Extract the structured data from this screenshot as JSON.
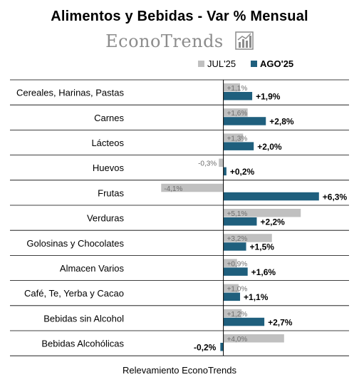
{
  "header": {
    "title": "Alimentos y Bebidas - Var % Mensual",
    "brand": "EconoTrends"
  },
  "footer": {
    "source": "Relevamiento EconoTrends"
  },
  "colors": {
    "jul": "#c0c0c0",
    "ago": "#1f5f7d",
    "grid": "#000000",
    "brand": "#8c8c8c"
  },
  "chart_data": {
    "type": "bar",
    "orientation": "horizontal",
    "title": "Alimentos y Bebidas - Var % Mensual",
    "legend_position": "top-right",
    "categories": [
      "Cereales, Harinas, Pastas",
      "Carnes",
      "Lácteos",
      "Huevos",
      "Frutas",
      "Verduras",
      "Golosinas y Chocolates",
      "Almacen Varios",
      "Café, Te, Yerba y Cacao",
      "Bebidas sin Alcohol",
      "Bebidas Alcohólicas"
    ],
    "series": [
      {
        "name": "JUL'25",
        "values": [
          1.1,
          1.6,
          1.3,
          -0.3,
          -4.1,
          5.1,
          3.2,
          0.9,
          1.0,
          1.2,
          4.0
        ],
        "labels": [
          "+1,1%",
          "+1,6%",
          "+1,3%",
          "-0,3%",
          "-4,1%",
          "+5,1%",
          "+3,2%",
          "+0,9%",
          "+1,0%",
          "+1,2%",
          "+4,0%"
        ]
      },
      {
        "name": "AGO'25",
        "values": [
          1.9,
          2.8,
          2.0,
          0.2,
          6.3,
          2.2,
          1.5,
          1.6,
          1.1,
          2.7,
          -0.2
        ],
        "labels": [
          "+1,9%",
          "+2,8%",
          "+2,0%",
          "+0,2%",
          "+6,3%",
          "+2,2%",
          "+1,5%",
          "+1,6%",
          "+1,1%",
          "+2,7%",
          "-0,2%"
        ]
      }
    ],
    "xlim": [
      -4.1,
      6.3
    ],
    "grid": true
  }
}
